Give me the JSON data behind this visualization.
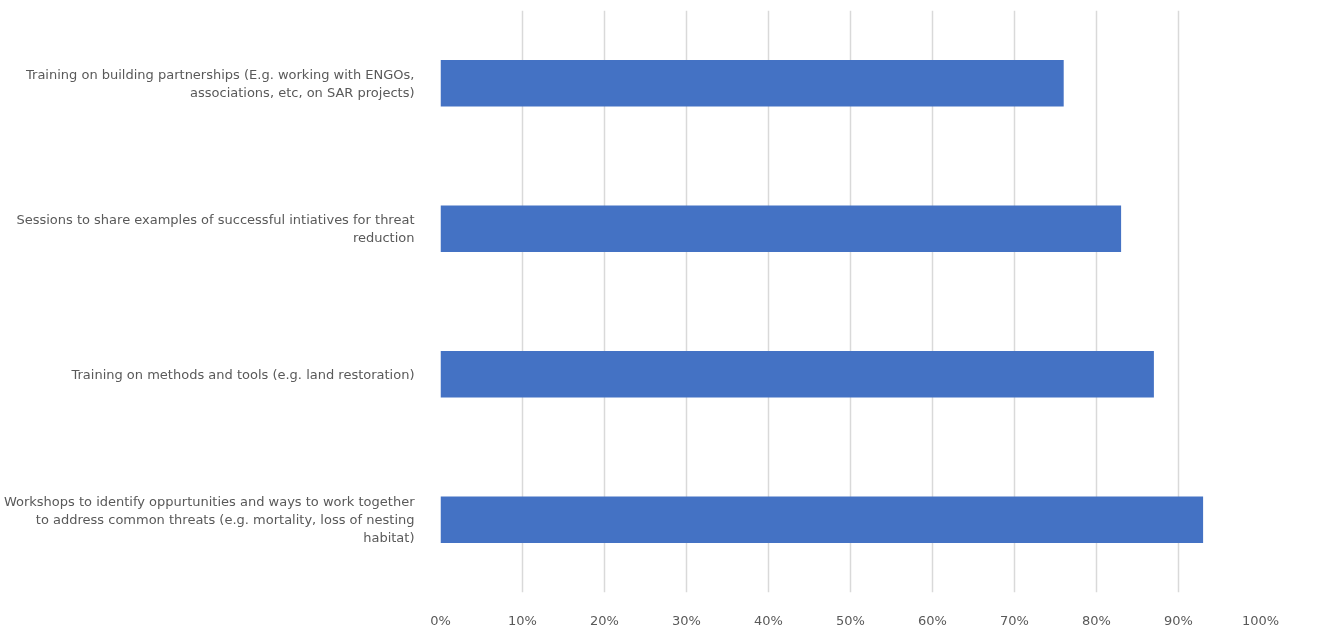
{
  "chart_data": {
    "type": "bar",
    "orientation": "horizontal",
    "categories": [
      "Training on building partnerships (E.g. working with ENGOs, associations, etc, on SAR projects)",
      "Sessions to share examples of successful intiatives for threat reduction",
      "Training on methods and tools (e.g. land restoration)",
      "Workshops to identify oppurtunities and ways to work together to address common threats (e.g. mortality, loss of nesting habitat)"
    ],
    "values": [
      0.76,
      0.83,
      0.87,
      0.93
    ],
    "color": "#4472c4",
    "xlim": [
      0,
      1
    ],
    "xticks": [
      {
        "value": 0,
        "label": "0%"
      },
      {
        "value": 0.1,
        "label": "10%"
      },
      {
        "value": 0.2,
        "label": "20%"
      },
      {
        "value": 0.3,
        "label": "30%"
      },
      {
        "value": 0.4,
        "label": "40%"
      },
      {
        "value": 0.5,
        "label": "50%"
      },
      {
        "value": 0.6,
        "label": "60%"
      },
      {
        "value": 0.7,
        "label": "70%"
      },
      {
        "value": 0.8,
        "label": "80%"
      },
      {
        "value": 0.9,
        "label": "90%"
      },
      {
        "value": 1,
        "label": "100%"
      }
    ],
    "grid": "x"
  }
}
